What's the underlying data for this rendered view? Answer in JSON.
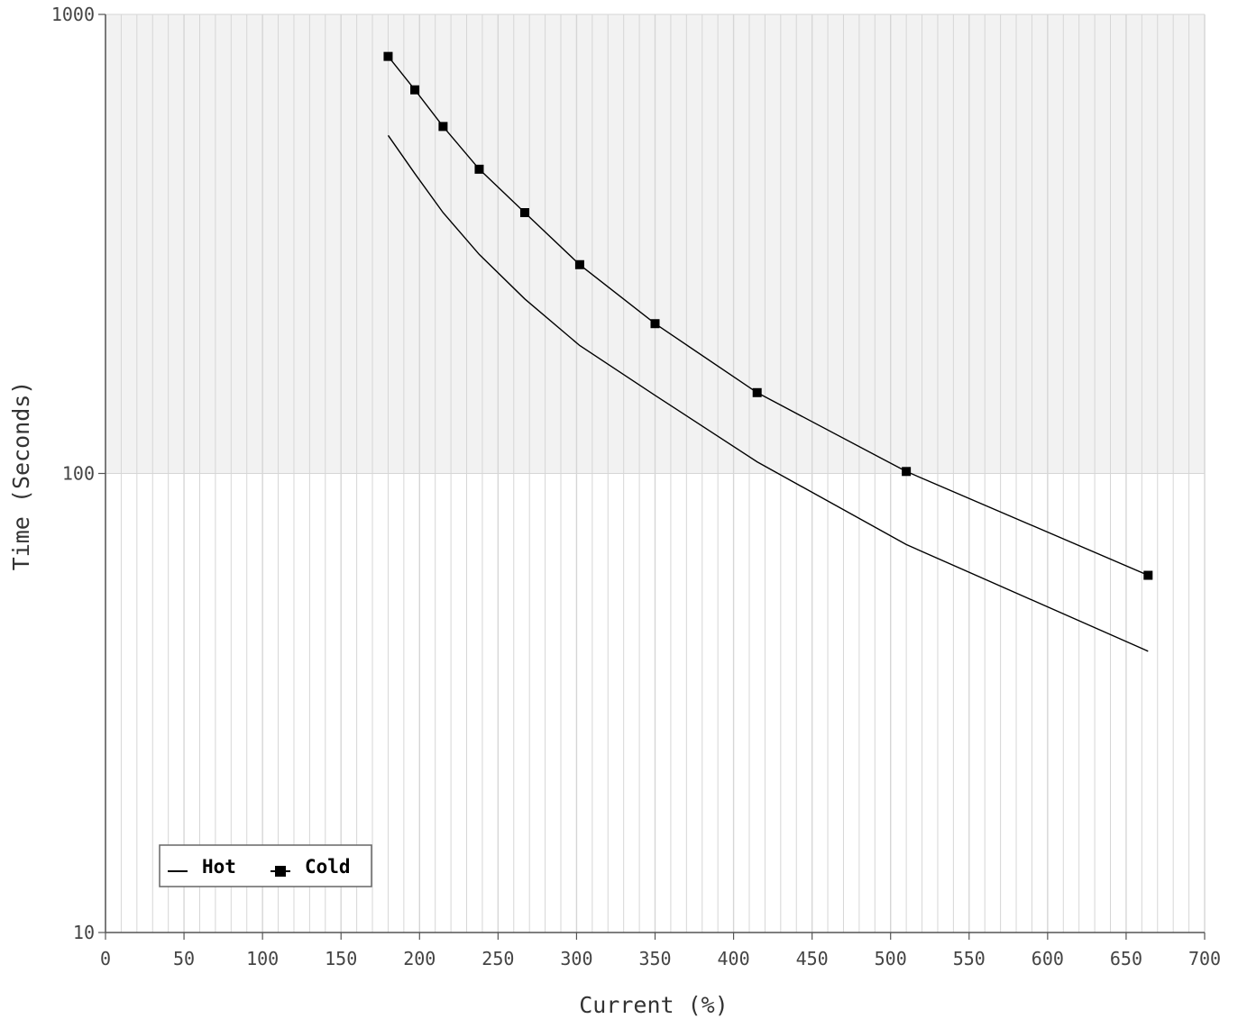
{
  "chart_data": {
    "type": "line",
    "xlabel": "Current (%)",
    "ylabel": "Time (Seconds)",
    "x_axis": {
      "min": 0,
      "max": 700,
      "major_step": 50,
      "minor_step": 10,
      "ticks": [
        "0",
        "50",
        "100",
        "150",
        "200",
        "250",
        "300",
        "350",
        "400",
        "450",
        "500",
        "550",
        "600",
        "650",
        "700"
      ]
    },
    "y_axis": {
      "scale": "log",
      "min": 10,
      "max": 1000,
      "ticks": [
        "10",
        "100",
        "1000"
      ]
    },
    "shaded_band": {
      "y_from": 100,
      "y_to": 1000,
      "color": "#f2f2f2"
    },
    "grid": true,
    "legend": {
      "placement": "bottom-left"
    },
    "series": [
      {
        "name": "Hot",
        "marker": "none",
        "color": "#000000",
        "points": [
          [
            180,
            545
          ],
          [
            197,
            450
          ],
          [
            215,
            370
          ],
          [
            238,
            300
          ],
          [
            267,
            240
          ],
          [
            302,
            190
          ],
          [
            350,
            148
          ],
          [
            415,
            106
          ],
          [
            510,
            70
          ],
          [
            664,
            41
          ]
        ]
      },
      {
        "name": "Cold",
        "marker": "square",
        "color": "#000000",
        "points": [
          [
            180,
            810
          ],
          [
            197,
            685
          ],
          [
            215,
            570
          ],
          [
            238,
            460
          ],
          [
            267,
            370
          ],
          [
            302,
            285
          ],
          [
            350,
            212
          ],
          [
            415,
            150
          ],
          [
            510,
            101
          ],
          [
            664,
            60
          ]
        ]
      }
    ]
  },
  "colors": {
    "grid": "#d6d6d6",
    "axis": "#555555",
    "line": "#000000"
  }
}
